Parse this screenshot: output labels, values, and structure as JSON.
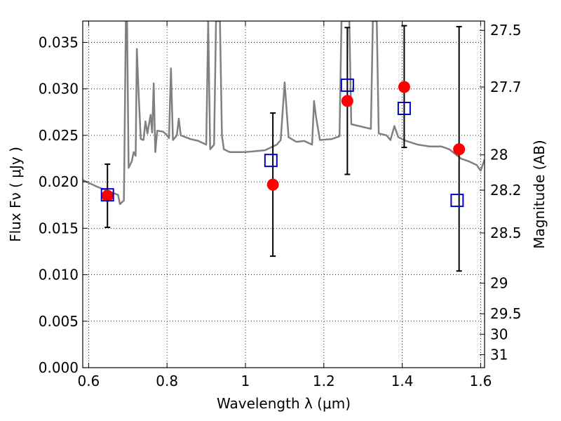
{
  "chart_data": {
    "type": "scatter",
    "title": "",
    "xlabel": "Wavelength  λ (μm)",
    "ylabel": "Flux  Fν  ( μJy )",
    "y2label": "Magnitude (AB)",
    "xlim": [
      0.585,
      1.61
    ],
    "ylim": [
      0.0,
      0.0373
    ],
    "grid": true,
    "x_ticks": [
      0.6,
      0.8,
      1.0,
      1.2,
      1.4,
      1.6
    ],
    "x_tick_labels": [
      "0.6",
      "0.8",
      "1",
      "1.2",
      "1.4",
      "1.6"
    ],
    "y_ticks": [
      0.0,
      0.005,
      0.01,
      0.015,
      0.02,
      0.025,
      0.03,
      0.035
    ],
    "y_tick_labels": [
      "0.000",
      "0.005",
      "0.010",
      "0.015",
      "0.020",
      "0.025",
      "0.030",
      "0.035"
    ],
    "y2_ticks": [
      {
        "label": "27.5",
        "flux": 0.0363
      },
      {
        "label": "27.7",
        "flux": 0.0302
      },
      {
        "label": "28",
        "flux": 0.0229
      },
      {
        "label": "28.2",
        "flux": 0.0191
      },
      {
        "label": "28.5",
        "flux": 0.0145
      },
      {
        "label": "29",
        "flux": 0.0091
      },
      {
        "label": "29.5",
        "flux": 0.0058
      },
      {
        "label": "30",
        "flux": 0.0036
      },
      {
        "label": "31",
        "flux": 0.0014
      }
    ],
    "series": [
      {
        "type": "line",
        "color": "#808080",
        "points": [
          [
            0.585,
            0.0202
          ],
          [
            0.62,
            0.0195
          ],
          [
            0.65,
            0.019
          ],
          [
            0.675,
            0.0186
          ],
          [
            0.68,
            0.0176
          ],
          [
            0.69,
            0.018
          ],
          [
            0.695,
            0.0373
          ],
          [
            0.698,
            0.0373
          ],
          [
            0.702,
            0.0215
          ],
          [
            0.71,
            0.0222
          ],
          [
            0.715,
            0.0232
          ],
          [
            0.72,
            0.0228
          ],
          [
            0.723,
            0.0343
          ],
          [
            0.727,
            0.03
          ],
          [
            0.733,
            0.0246
          ],
          [
            0.74,
            0.0245
          ],
          [
            0.745,
            0.0265
          ],
          [
            0.75,
            0.0252
          ],
          [
            0.758,
            0.0272
          ],
          [
            0.762,
            0.0253
          ],
          [
            0.766,
            0.0306
          ],
          [
            0.77,
            0.0232
          ],
          [
            0.775,
            0.0255
          ],
          [
            0.79,
            0.0254
          ],
          [
            0.8,
            0.025
          ],
          [
            0.805,
            0.0247
          ],
          [
            0.81,
            0.0322
          ],
          [
            0.815,
            0.0245
          ],
          [
            0.825,
            0.025
          ],
          [
            0.83,
            0.0268
          ],
          [
            0.835,
            0.025
          ],
          [
            0.86,
            0.0246
          ],
          [
            0.88,
            0.0244
          ],
          [
            0.89,
            0.0242
          ],
          [
            0.9,
            0.024
          ],
          [
            0.905,
            0.0373
          ],
          [
            0.91,
            0.0235
          ],
          [
            0.92,
            0.024
          ],
          [
            0.925,
            0.0373
          ],
          [
            0.935,
            0.0373
          ],
          [
            0.94,
            0.025
          ],
          [
            0.945,
            0.0235
          ],
          [
            0.96,
            0.0232
          ],
          [
            1.0,
            0.0232
          ],
          [
            1.05,
            0.0234
          ],
          [
            1.08,
            0.024
          ],
          [
            1.09,
            0.0245
          ],
          [
            1.1,
            0.0307
          ],
          [
            1.11,
            0.0248
          ],
          [
            1.13,
            0.0243
          ],
          [
            1.15,
            0.0244
          ],
          [
            1.17,
            0.024
          ],
          [
            1.175,
            0.0287
          ],
          [
            1.18,
            0.027
          ],
          [
            1.19,
            0.0245
          ],
          [
            1.22,
            0.0246
          ],
          [
            1.24,
            0.0249
          ],
          [
            1.245,
            0.0373
          ],
          [
            1.265,
            0.0373
          ],
          [
            1.27,
            0.0262
          ],
          [
            1.29,
            0.026
          ],
          [
            1.3,
            0.0259
          ],
          [
            1.32,
            0.0257
          ],
          [
            1.325,
            0.0373
          ],
          [
            1.335,
            0.0373
          ],
          [
            1.34,
            0.0252
          ],
          [
            1.36,
            0.025
          ],
          [
            1.37,
            0.0245
          ],
          [
            1.38,
            0.026
          ],
          [
            1.39,
            0.0248
          ],
          [
            1.41,
            0.0244
          ],
          [
            1.44,
            0.024
          ],
          [
            1.47,
            0.0238
          ],
          [
            1.5,
            0.0238
          ],
          [
            1.52,
            0.0235
          ],
          [
            1.55,
            0.0225
          ],
          [
            1.57,
            0.0222
          ],
          [
            1.59,
            0.0218
          ],
          [
            1.6,
            0.0212
          ],
          [
            1.61,
            0.0224
          ]
        ]
      },
      {
        "type": "observed",
        "color": "#ff0000",
        "marker": "filled-circle",
        "points": [
          {
            "x": 0.648,
            "y": 0.0185,
            "yerr_low": 0.0151,
            "yerr_high": 0.0219
          },
          {
            "x": 1.07,
            "y": 0.0197,
            "yerr_low": 0.012,
            "yerr_high": 0.0274
          },
          {
            "x": 1.26,
            "y": 0.0287,
            "yerr_low": 0.0208,
            "yerr_high": 0.0366
          },
          {
            "x": 1.405,
            "y": 0.0302,
            "yerr_low": 0.0237,
            "yerr_high": 0.0368
          },
          {
            "x": 1.545,
            "y": 0.0235,
            "yerr_low": 0.0104,
            "yerr_high": 0.0367
          }
        ]
      },
      {
        "type": "model",
        "color": "#0000cc",
        "marker": "open-square",
        "points": [
          {
            "x": 0.648,
            "y": 0.0186
          },
          {
            "x": 1.065,
            "y": 0.0223
          },
          {
            "x": 1.26,
            "y": 0.0304
          },
          {
            "x": 1.405,
            "y": 0.0279
          },
          {
            "x": 1.54,
            "y": 0.018
          }
        ]
      }
    ]
  }
}
